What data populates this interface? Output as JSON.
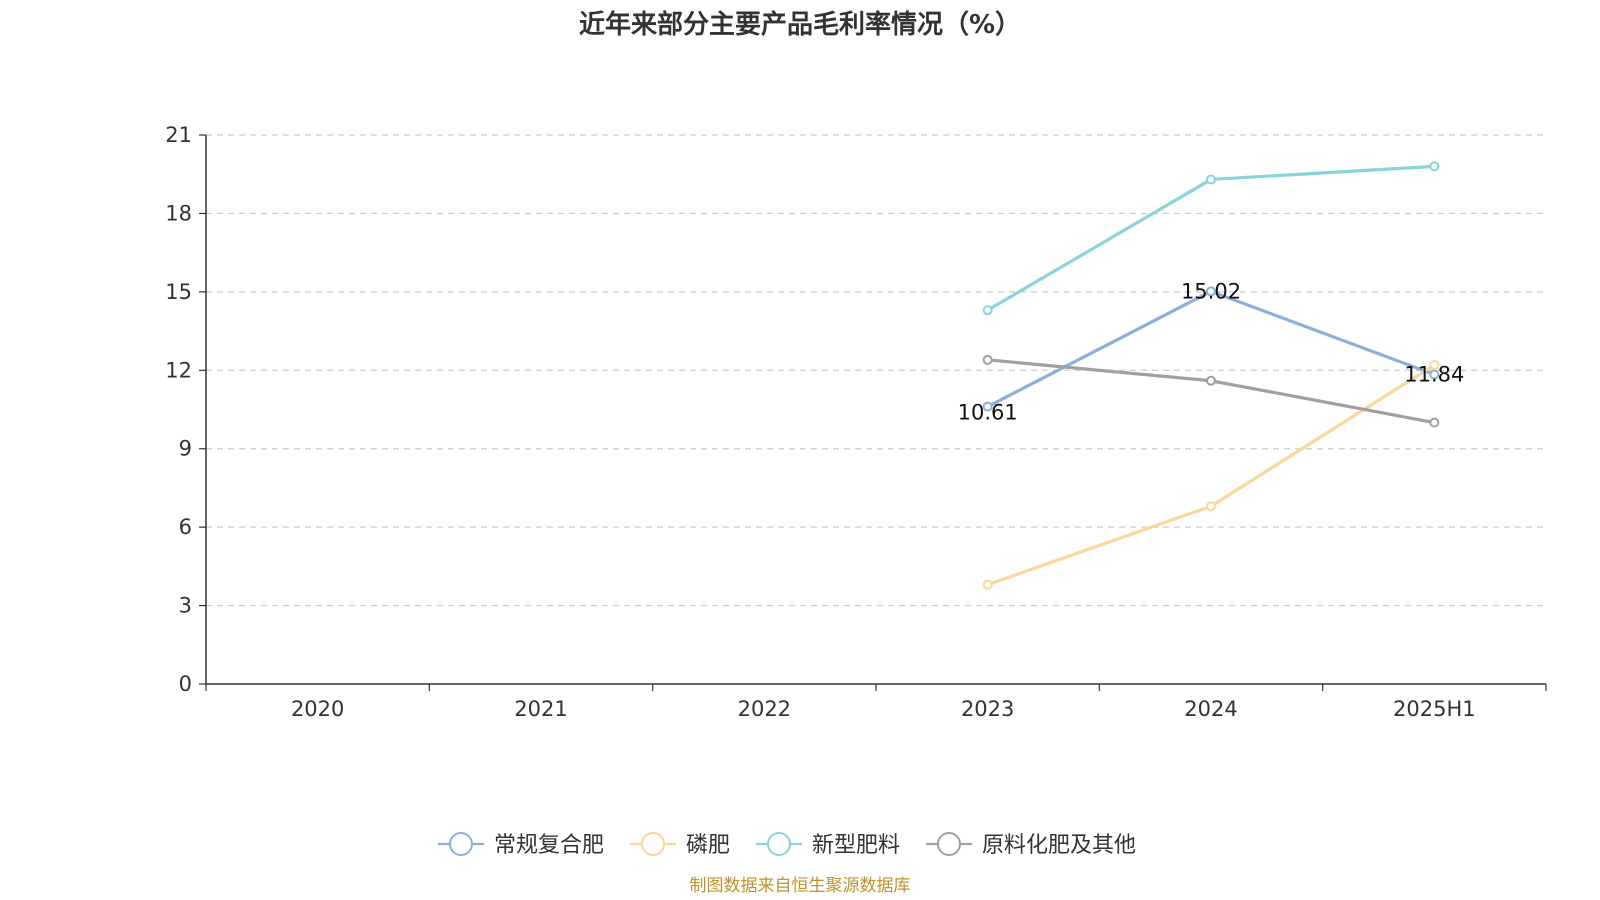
{
  "chart_data": {
    "type": "line",
    "title": "近年来部分主要产品毛利率情况（%）",
    "categories": [
      "2020",
      "2021",
      "2022",
      "2023",
      "2024",
      "2025H1"
    ],
    "ylim": [
      0,
      21
    ],
    "yticks": [
      0,
      3,
      6,
      9,
      12,
      15,
      18,
      21
    ],
    "grid": true,
    "legend_position": "bottom",
    "series": [
      {
        "name": "常规复合肥",
        "color": "#8eafd8",
        "values": [
          null,
          null,
          null,
          10.61,
          15.02,
          11.84
        ],
        "labels": [
          null,
          null,
          null,
          "10.61",
          "15.02",
          "11.84"
        ]
      },
      {
        "name": "磷肥",
        "color": "#fbd89a",
        "values": [
          null,
          null,
          null,
          3.8,
          6.8,
          12.2
        ],
        "labels": [
          null,
          null,
          null,
          null,
          null,
          null
        ]
      },
      {
        "name": "新型肥料",
        "color": "#88d4d8",
        "values": [
          null,
          null,
          null,
          14.3,
          19.3,
          19.8
        ],
        "labels": [
          null,
          null,
          null,
          null,
          null,
          null
        ]
      },
      {
        "name": "原料化肥及其他",
        "color": "#a0a0a0",
        "values": [
          null,
          null,
          null,
          12.4,
          11.6,
          10.0
        ],
        "labels": [
          null,
          null,
          null,
          null,
          null,
          null
        ]
      }
    ],
    "source": "制图数据来自恒生聚源数据库"
  }
}
